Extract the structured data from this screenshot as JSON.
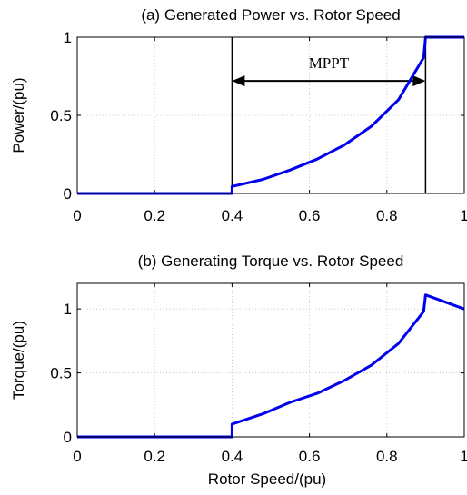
{
  "colors": {
    "series": "#0000ee",
    "axis": "#000000",
    "grid": "#b8b8b8"
  },
  "chart_data": [
    {
      "type": "line",
      "title": "(a) Generated Power vs. Rotor Speed",
      "xlabel": "",
      "ylabel": "Power/(pu)",
      "xlim": [
        0,
        1
      ],
      "ylim": [
        0,
        1
      ],
      "xticks": [
        0,
        0.2,
        0.4,
        0.6,
        0.8,
        1
      ],
      "xtick_labels": [
        "0",
        "0.2",
        "0.4",
        "0.6",
        "0.8",
        "1"
      ],
      "yticks": [
        0,
        0.5,
        1
      ],
      "ytick_labels": [
        "0",
        "0.5",
        "1"
      ],
      "grid": true,
      "series": [
        {
          "x": [
            0,
            0.4,
            0.4,
            0.48,
            0.55,
            0.62,
            0.69,
            0.76,
            0.83,
            0.895,
            0.9,
            1.0
          ],
          "y": [
            0,
            0,
            0.045,
            0.09,
            0.15,
            0.22,
            0.31,
            0.43,
            0.6,
            0.87,
            1.0,
            1.0
          ]
        }
      ],
      "vlines": [
        0.4,
        0.9
      ],
      "annotations": [
        {
          "text": "MPPT",
          "x": 0.65,
          "y": 0.72,
          "arrow_from": 0.4,
          "arrow_to": 0.9
        }
      ]
    },
    {
      "type": "line",
      "title": "(b) Generating Torque vs. Rotor Speed",
      "xlabel": "Rotor Speed/(pu)",
      "ylabel": "Torque/(pu)",
      "xlim": [
        0,
        1
      ],
      "ylim": [
        0,
        1.2
      ],
      "xticks": [
        0,
        0.2,
        0.4,
        0.6,
        0.8,
        1
      ],
      "xtick_labels": [
        "0",
        "0.2",
        "0.4",
        "0.6",
        "0.8",
        "1"
      ],
      "yticks": [
        0,
        0.5,
        1
      ],
      "ytick_labels": [
        "0",
        "0.5",
        "1"
      ],
      "grid": true,
      "series": [
        {
          "x": [
            0,
            0.4,
            0.4,
            0.48,
            0.55,
            0.62,
            0.69,
            0.76,
            0.83,
            0.895,
            0.9,
            1.0
          ],
          "y": [
            0,
            0,
            0.1,
            0.18,
            0.27,
            0.34,
            0.44,
            0.56,
            0.73,
            0.98,
            1.11,
            1.0
          ]
        }
      ]
    }
  ]
}
